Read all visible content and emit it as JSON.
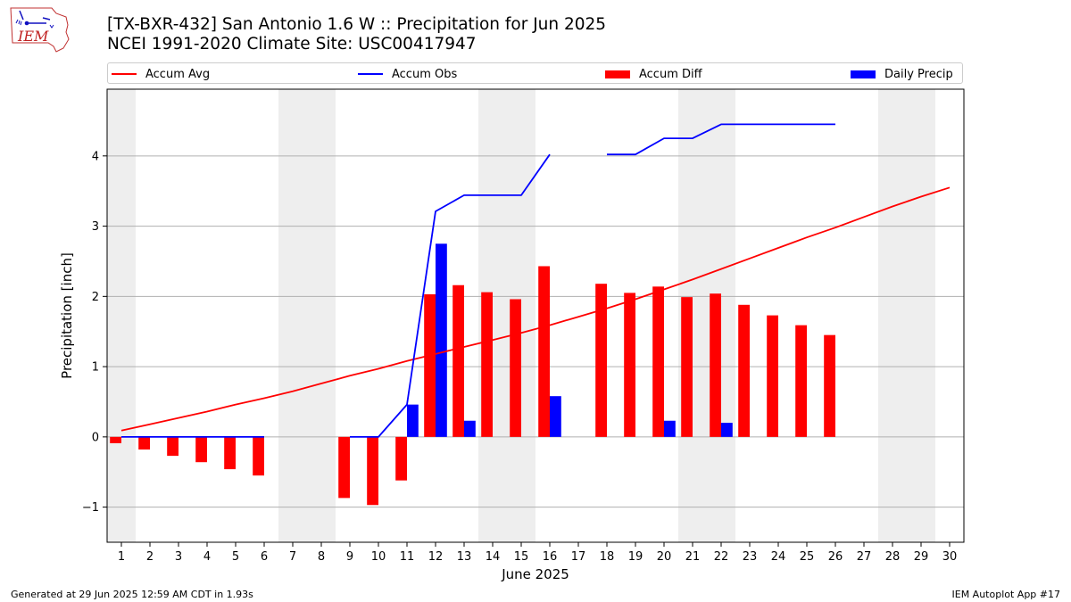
{
  "header": {
    "logo_text": "IEM",
    "title_line1": "[TX-BXR-432] San Antonio 1.6 W :: Precipitation for Jun 2025",
    "title_line2": "NCEI 1991-2020 Climate Site: USC00417947"
  },
  "footer": {
    "left": "Generated at 29 Jun 2025 12:59 AM CDT in 1.93s",
    "right": "IEM Autoplot App #17"
  },
  "colors": {
    "accum_avg": "#ff0000",
    "accum_obs": "#0000ff",
    "accum_diff": "#ff0000",
    "daily_precip": "#0000ff",
    "weekend_shade": "#eeeeee",
    "grid": "#b0b0b0"
  },
  "chart_data": {
    "type": "bar",
    "xlabel": "June 2025",
    "ylabel": "Precipitation [inch]",
    "xlim": [
      0.5,
      30.5
    ],
    "ylim": [
      -1.5,
      4.95
    ],
    "yticks": [
      -1,
      0,
      1,
      2,
      3,
      4
    ],
    "ytick_labels": [
      "−1",
      "0",
      "1",
      "2",
      "3",
      "4"
    ],
    "grid": "y",
    "legend_position": "top",
    "days": [
      1,
      2,
      3,
      4,
      5,
      6,
      7,
      8,
      9,
      10,
      11,
      12,
      13,
      14,
      15,
      16,
      17,
      18,
      19,
      20,
      21,
      22,
      23,
      24,
      25,
      26,
      27,
      28,
      29,
      30
    ],
    "weekend_days": [
      1,
      7,
      8,
      14,
      15,
      21,
      22,
      28,
      29
    ],
    "legend": [
      "Accum Avg",
      "Accum Obs",
      "Accum Diff",
      "Daily Precip"
    ],
    "series": [
      {
        "name": "Accum Avg",
        "kind": "line",
        "x": [
          1,
          2,
          3,
          4,
          5,
          6,
          7,
          8,
          9,
          10,
          11,
          12,
          13,
          14,
          15,
          16,
          17,
          18,
          19,
          20,
          21,
          22,
          23,
          24,
          25,
          26,
          27,
          28,
          29,
          30
        ],
        "values": [
          0.09,
          0.18,
          0.27,
          0.36,
          0.46,
          0.55,
          0.65,
          0.76,
          0.87,
          0.97,
          1.08,
          1.18,
          1.28,
          1.38,
          1.48,
          1.59,
          1.71,
          1.83,
          1.96,
          2.1,
          2.24,
          2.39,
          2.54,
          2.69,
          2.84,
          2.98,
          3.13,
          3.28,
          3.42,
          3.55
        ]
      },
      {
        "name": "Accum Obs",
        "kind": "line",
        "x": [
          1,
          2,
          3,
          4,
          5,
          6,
          7,
          8,
          9,
          10,
          11,
          12,
          13,
          14,
          15,
          16,
          17,
          18,
          19,
          20,
          21,
          22,
          23,
          24,
          25,
          26,
          27,
          28,
          29,
          30
        ],
        "values": [
          0,
          0,
          0,
          0,
          0,
          0,
          null,
          null,
          0,
          0,
          0.46,
          3.21,
          3.44,
          3.44,
          3.44,
          4.02,
          null,
          4.02,
          4.02,
          4.25,
          4.25,
          4.45,
          4.45,
          4.45,
          4.45,
          4.45,
          null,
          null,
          null,
          null
        ]
      },
      {
        "name": "Accum Diff",
        "kind": "bar",
        "x": [
          1,
          2,
          3,
          4,
          5,
          6,
          9,
          10,
          11,
          12,
          13,
          14,
          15,
          16,
          18,
          19,
          20,
          21,
          22,
          23,
          24,
          25,
          26
        ],
        "values": [
          -0.09,
          -0.18,
          -0.27,
          -0.36,
          -0.46,
          -0.55,
          -0.87,
          -0.97,
          -0.62,
          2.03,
          2.16,
          2.06,
          1.96,
          2.43,
          2.18,
          2.05,
          2.14,
          1.99,
          2.04,
          1.88,
          1.73,
          1.59,
          1.45
        ]
      },
      {
        "name": "Daily Precip",
        "kind": "bar",
        "x": [
          11,
          12,
          13,
          16,
          20,
          22
        ],
        "values": [
          0.46,
          2.75,
          0.23,
          0.58,
          0.23,
          0.2
        ]
      }
    ]
  }
}
